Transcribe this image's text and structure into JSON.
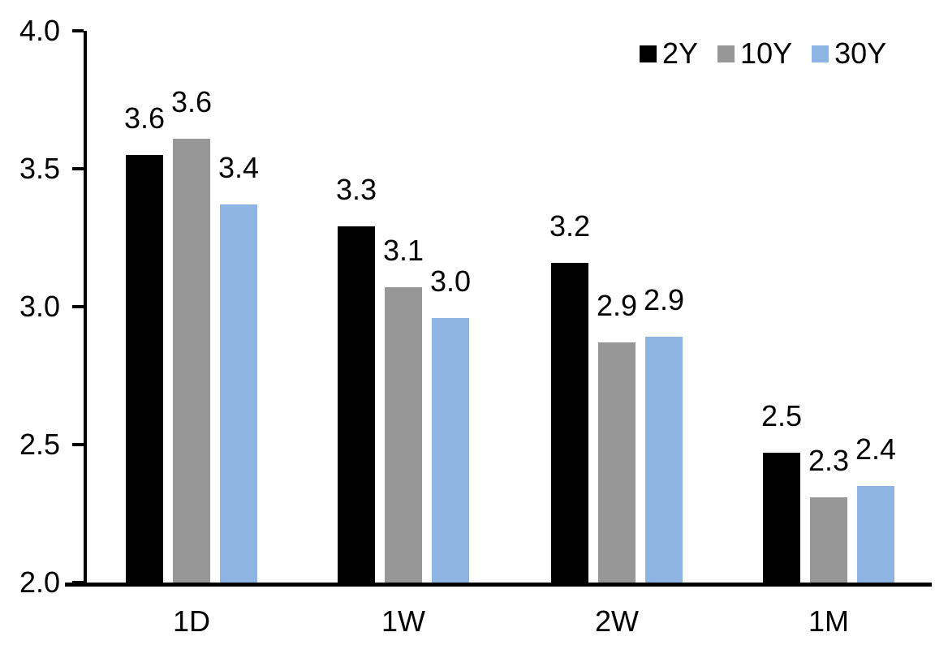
{
  "chart_data": {
    "type": "bar",
    "title": "",
    "xlabel": "",
    "ylabel": "",
    "categories": [
      "1D",
      "1W",
      "2W",
      "1M"
    ],
    "series": [
      {
        "name": "2Y",
        "color": "#000000",
        "values": [
          3.55,
          3.29,
          3.16,
          2.47
        ],
        "labels": [
          "3.6",
          "3.3",
          "3.2",
          "2.5"
        ]
      },
      {
        "name": "10Y",
        "color": "#979797",
        "values": [
          3.61,
          3.07,
          2.87,
          2.31
        ],
        "labels": [
          "3.6",
          "3.1",
          "2.9",
          "2.3"
        ]
      },
      {
        "name": "30Y",
        "color": "#8EB4E3",
        "values": [
          3.37,
          2.96,
          2.89,
          2.35
        ],
        "labels": [
          "3.4",
          "3.0",
          "2.9",
          "2.4"
        ]
      }
    ],
    "ylim": [
      2.0,
      4.0
    ],
    "yticks": [
      2.0,
      2.5,
      3.0,
      3.5,
      4.0
    ],
    "ytick_labels": [
      "2.0",
      "2.5",
      "3.0",
      "3.5",
      "4.0"
    ],
    "grid": false,
    "legend_position": "top-right",
    "axis_color": "#000000",
    "text_color": "#000000",
    "background_color": "#ffffff"
  }
}
